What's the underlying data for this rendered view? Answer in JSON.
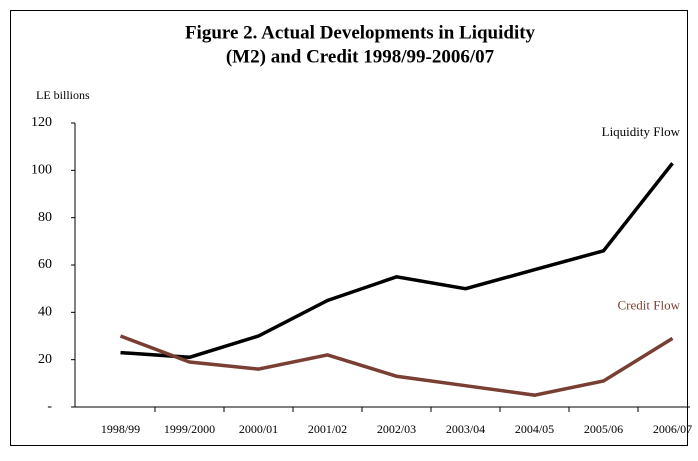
{
  "chart_data": {
    "type": "line",
    "title": [
      "Figure 2. Actual Developments in Liquidity",
      "(M2) and Credit 1998/99-2006/07"
    ],
    "y_label": "LE billions",
    "categories": [
      "1998/99",
      "1999/2000",
      "2000/01",
      "2001/02",
      "2002/03",
      "2003/04",
      "2004/05",
      "2005/06",
      "2006/07"
    ],
    "series": [
      {
        "name": "Liquidity Flow",
        "color": "#000000",
        "values": [
          23,
          21,
          30,
          45,
          55,
          50,
          58,
          66,
          103
        ]
      },
      {
        "name": "Credit Flow",
        "color": "#7a3f33",
        "values": [
          30,
          19,
          16,
          22,
          13,
          9,
          5,
          11,
          29
        ]
      }
    ],
    "ylim": [
      0,
      120
    ],
    "yticks": [
      {
        "value": 0,
        "label": "-"
      },
      20,
      40,
      60,
      80,
      100,
      120
    ]
  }
}
